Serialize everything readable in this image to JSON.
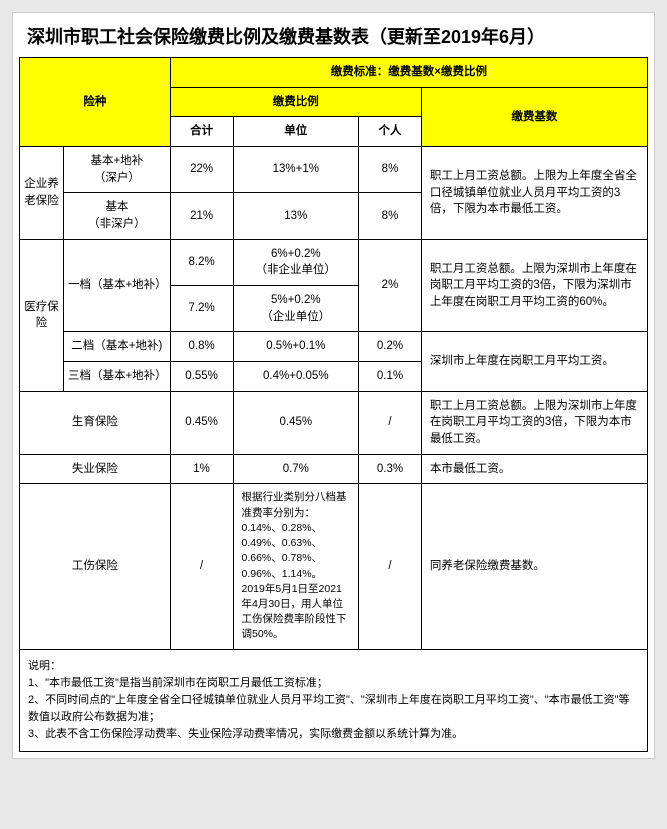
{
  "title": "深圳市职工社会保险缴费比例及缴费基数表（更新至2019年6月）",
  "header": {
    "insuranceType": "险种",
    "standard": "缴费标准：缴费基数×缴费比例",
    "ratio": "缴费比例",
    "base": "缴费基数",
    "total": "合计",
    "employer": "单位",
    "employee": "个人"
  },
  "pension": {
    "category": "企业养老保险",
    "row1": {
      "sub": "基本+地补\n（深户）",
      "total": "22%",
      "employer": "13%+1%",
      "employee": "8%"
    },
    "row2": {
      "sub": "基本\n（非深户）",
      "total": "21%",
      "employer": "13%",
      "employee": "8%"
    },
    "base": "职工上月工资总额。上限为上年度全省全口径城镇单位就业人员月平均工资的3倍，下限为本市最低工资。"
  },
  "medical": {
    "category": "医疗保险",
    "tier1": {
      "sub": "一档（基本+地补）",
      "rowA": {
        "total": "8.2%",
        "employer": "6%+0.2%\n（非企业单位）"
      },
      "rowB": {
        "total": "7.2%",
        "employer": "5%+0.2%\n（企业单位）"
      },
      "employee": "2%",
      "base": "职工月工资总额。上限为深圳市上年度在岗职工月平均工资的3倍，下限为深圳市上年度在岗职工月平均工资的60%。"
    },
    "tier2": {
      "sub": "二档（基本+地补)",
      "total": "0.8%",
      "employer": "0.5%+0.1%",
      "employee": "0.2%"
    },
    "tier3": {
      "sub": "三档（基本+地补）",
      "total": "0.55%",
      "employer": "0.4%+0.05%",
      "employee": "0.1%"
    },
    "tier23base": "深圳市上年度在岗职工月平均工资。"
  },
  "maternity": {
    "sub": "生育保险",
    "total": "0.45%",
    "employer": "0.45%",
    "employee": "/",
    "base": "职工上月工资总额。上限为深圳市上年度在岗职工月平均工资的3倍，下限为本市最低工资。"
  },
  "unemployment": {
    "sub": "失业保险",
    "total": "1%",
    "employer": "0.7%",
    "employee": "0.3%",
    "base": "本市最低工资。"
  },
  "workinjury": {
    "sub": "工伤保险",
    "total": "/",
    "desc": "根据行业类别分八档基准费率分别为：0.14%、0.28%、0.49%、0.63%、0.66%、0.78%、0.96%、1.14%。\n2019年5月1日至2021年4月30日，用人单位工伤保险费率阶段性下调50%。",
    "employee": "/",
    "base": "同养老保险缴费基数。"
  },
  "notes": "说明：\n1、\"本市最低工资\"是指当前深圳市在岗职工月最低工资标准；\n2、不同时间点的\"上年度全省全口径城镇单位就业人员月平均工资\"、\"深圳市上年度在岗职工月平均工资\"、\"本市最低工资\"等数值以政府公布数据为准；\n3、此表不含工伤保险浮动费率、失业保险浮动费率情况，实际缴费金额以系统计算为准。",
  "colors": {
    "highlight": "#ffff00",
    "border": "#000000",
    "background": "#ffffff",
    "pageBg": "#e8e8e8"
  }
}
